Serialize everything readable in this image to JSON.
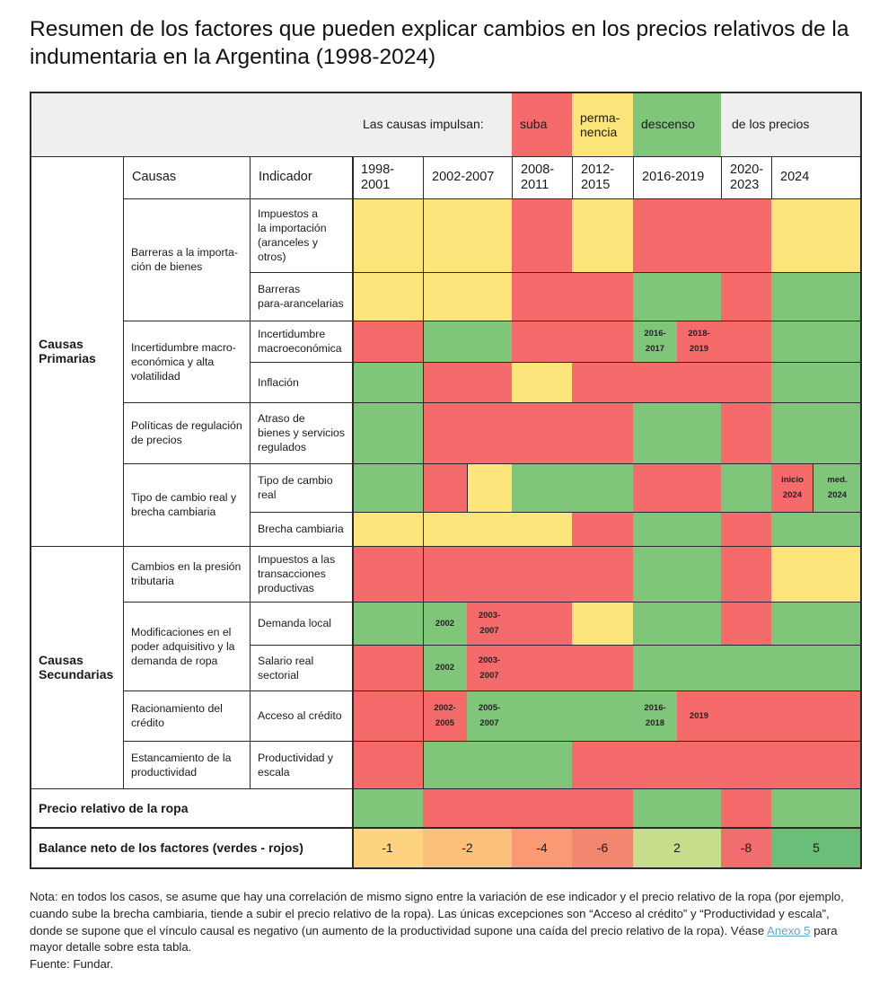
{
  "title": "Resumen de los factores que pueden explicar cambios en los precios relativos de la indumentaria en la Argentina (1998-2024)",
  "legend": {
    "prefix": "Las causas impulsan:",
    "suba": "suba",
    "permanencia": "perma-\nnencia",
    "descenso": "descenso",
    "suffix": "de los precios"
  },
  "header": {
    "causas": "Causas",
    "indicador": "Indicador",
    "periods": [
      "1998-\n2001",
      "2002-2007",
      "2008-\n2011",
      "2012-\n2015",
      "2016-2019",
      "2020-\n2023",
      "2024"
    ]
  },
  "groups": {
    "primarias": "Causas\nPrimarias",
    "secundarias": "Causas\nSecundarias"
  },
  "causes": [
    "Barreras a la importa-\nción de bienes",
    "Incertidumbre macro-\neconómica y alta\nvolatilidad",
    "Políticas de regulación\nde precios",
    "Tipo de cambio real y\nbrecha cambiaria",
    "Cambios en la presión\ntributaria",
    "Modificaciones en el\npoder adquisitivo y la\ndemanda de ropa",
    "Racionamiento del\ncrédito",
    "Estancamiento de la\nproductividad"
  ],
  "indicators": [
    "Impuestos a\nla importación\n(aranceles y\notros)",
    "Barreras\npara-arancelarias",
    "Incertidumbre\nmacroeconómica",
    "Inflación",
    "Atraso de\nbienes y servicios\nregulados",
    "Tipo de cambio\nreal",
    "Brecha cambiaria",
    "Impuestos a las\ntransacciones\nproductivas",
    "Demanda local",
    "Salario real\nsectorial",
    "Acceso al crédito",
    "Productividad y\nescala"
  ],
  "sublabels": {
    "r3_p5_a": "2016-\n2017",
    "r3_p5_b": "2018-\n2019",
    "r6_p7_a": "inicio\n2024",
    "r6_p7_b": "med.\n2024",
    "r9_p2_a": "2002",
    "r9_p2_b": "2003-\n2007",
    "r10_p2_a": "2002",
    "r10_p2_b": "2003-\n2007",
    "r11_p2_a": "2002-\n2005",
    "r11_p2_b": "2005-\n2007",
    "r11_p5_a": "2016-\n2018",
    "r11_p5_b": "2019"
  },
  "price_row_label": "Precio relativo de la ropa",
  "balance": {
    "label": "Balance neto de los factores (verdes - rojos)",
    "values": [
      "-1",
      "-2",
      "-4",
      "-6",
      "2",
      "-8",
      "5"
    ]
  },
  "colors": {
    "suba": "#f56b6b",
    "permanencia": "#fde57c",
    "descenso": "#7fc67a",
    "balance": [
      "#fdd380",
      "#fbc07a",
      "#f99a74",
      "#f3866f",
      "#c6de8a",
      "#f26d6d",
      "#6abf78"
    ]
  },
  "note": {
    "text1": "Nota: en todos los casos, se asume que hay una correlación de mismo signo entre la variación de ese indicador y el precio relativo de la ropa (por ejemplo, cuando sube la brecha cambiaria, tiende a subir el precio relativo de la ropa). Las únicas excepciones son “Acceso al crédito” y “Productividad y escala”, donde se supone que el vínculo causal es negativo (un aumento de la productividad supone una caída del precio relativo de la ropa). Véase ",
    "link": "Anexo 5",
    "text2": " para mayor detalle sobre esta tabla.",
    "source": "Fuente: Fundar."
  }
}
